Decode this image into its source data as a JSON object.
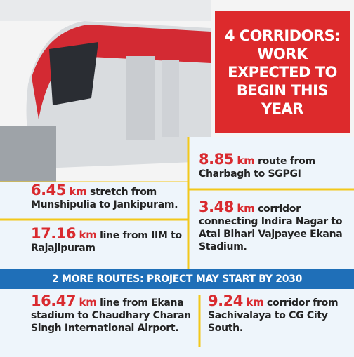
{
  "headline": "4 CORRIDORS: WORK EXPECTED TO BEGIN THIS YEAR",
  "banner": "2 MORE ROUTES: PROJECT MAY START BY 2030",
  "corridors": [
    {
      "number": 8.85,
      "unit": "km",
      "text": "route from Charbagh to SGPGI"
    },
    {
      "number": 6.45,
      "unit": "km",
      "text": "stretch from Munshipulia to Jankipuram."
    },
    {
      "number": 3.48,
      "unit": "km",
      "text": "corridor connecting Indira Nagar to Atal Bihari Vajpayee Ekana Stadium."
    },
    {
      "number": 17.16,
      "unit": "km",
      "text": "line from IIM to Rajajipuram"
    }
  ],
  "more_routes": [
    {
      "number": 16.47,
      "unit": "km",
      "text": "line from Ekana stadium to Chaudhary Charan Singh International Airport."
    },
    {
      "number": 9.24,
      "unit": "km",
      "text": "corridor from Sachivalaya to CG City South."
    }
  ]
}
